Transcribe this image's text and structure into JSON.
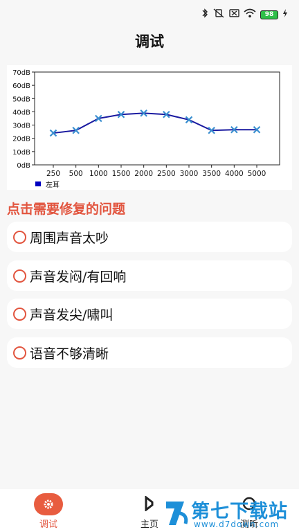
{
  "status_bar": {
    "bluetooth_icon": "bluetooth-icon",
    "mute_icon": "vibrate-off-icon",
    "sim_icon": "no-sim-icon",
    "wifi_icon": "wifi-icon",
    "battery_level": "98",
    "charging_icon": "charging-bolt-icon"
  },
  "header": {
    "title": "调试"
  },
  "chart_data": {
    "type": "line",
    "categories": [
      "250",
      "500",
      "1000",
      "1500",
      "2000",
      "2500",
      "3000",
      "3500",
      "4000",
      "5000"
    ],
    "series": [
      {
        "name": "左耳",
        "color": "#1a1aa0",
        "marker_color": "#3a8fd0",
        "marker": "x",
        "values": [
          24,
          26,
          35,
          38,
          39,
          38,
          34,
          26,
          26.5,
          26.5
        ]
      }
    ],
    "yticks": [
      "0dB",
      "10dB",
      "20dB",
      "30dB",
      "40dB",
      "50dB",
      "60dB",
      "70dB"
    ],
    "ylim": [
      0,
      70
    ],
    "grid": false,
    "legend": "bottom-left",
    "legend_color": "#0000c0"
  },
  "problems": {
    "title": "点击需要修复的问题",
    "items": [
      {
        "label": "周围声音太吵"
      },
      {
        "label": "声音发闷/有回响"
      },
      {
        "label": "声音发尖/啸叫"
      },
      {
        "label": "语音不够清晰"
      }
    ]
  },
  "bottom_nav": {
    "tabs": [
      {
        "label": "调试",
        "icon": "gear-icon",
        "active": true
      },
      {
        "label": "主页",
        "icon": "home-icon",
        "active": false
      },
      {
        "label": "测听",
        "icon": "hearing-test-icon",
        "active": false
      }
    ]
  },
  "watermark": {
    "title": "第七下载站",
    "url": "www.d7down.com"
  },
  "colors": {
    "accent": "#e2553f",
    "nav_active_bg": "#e85c3f",
    "watermark": "#1d8fd8"
  }
}
